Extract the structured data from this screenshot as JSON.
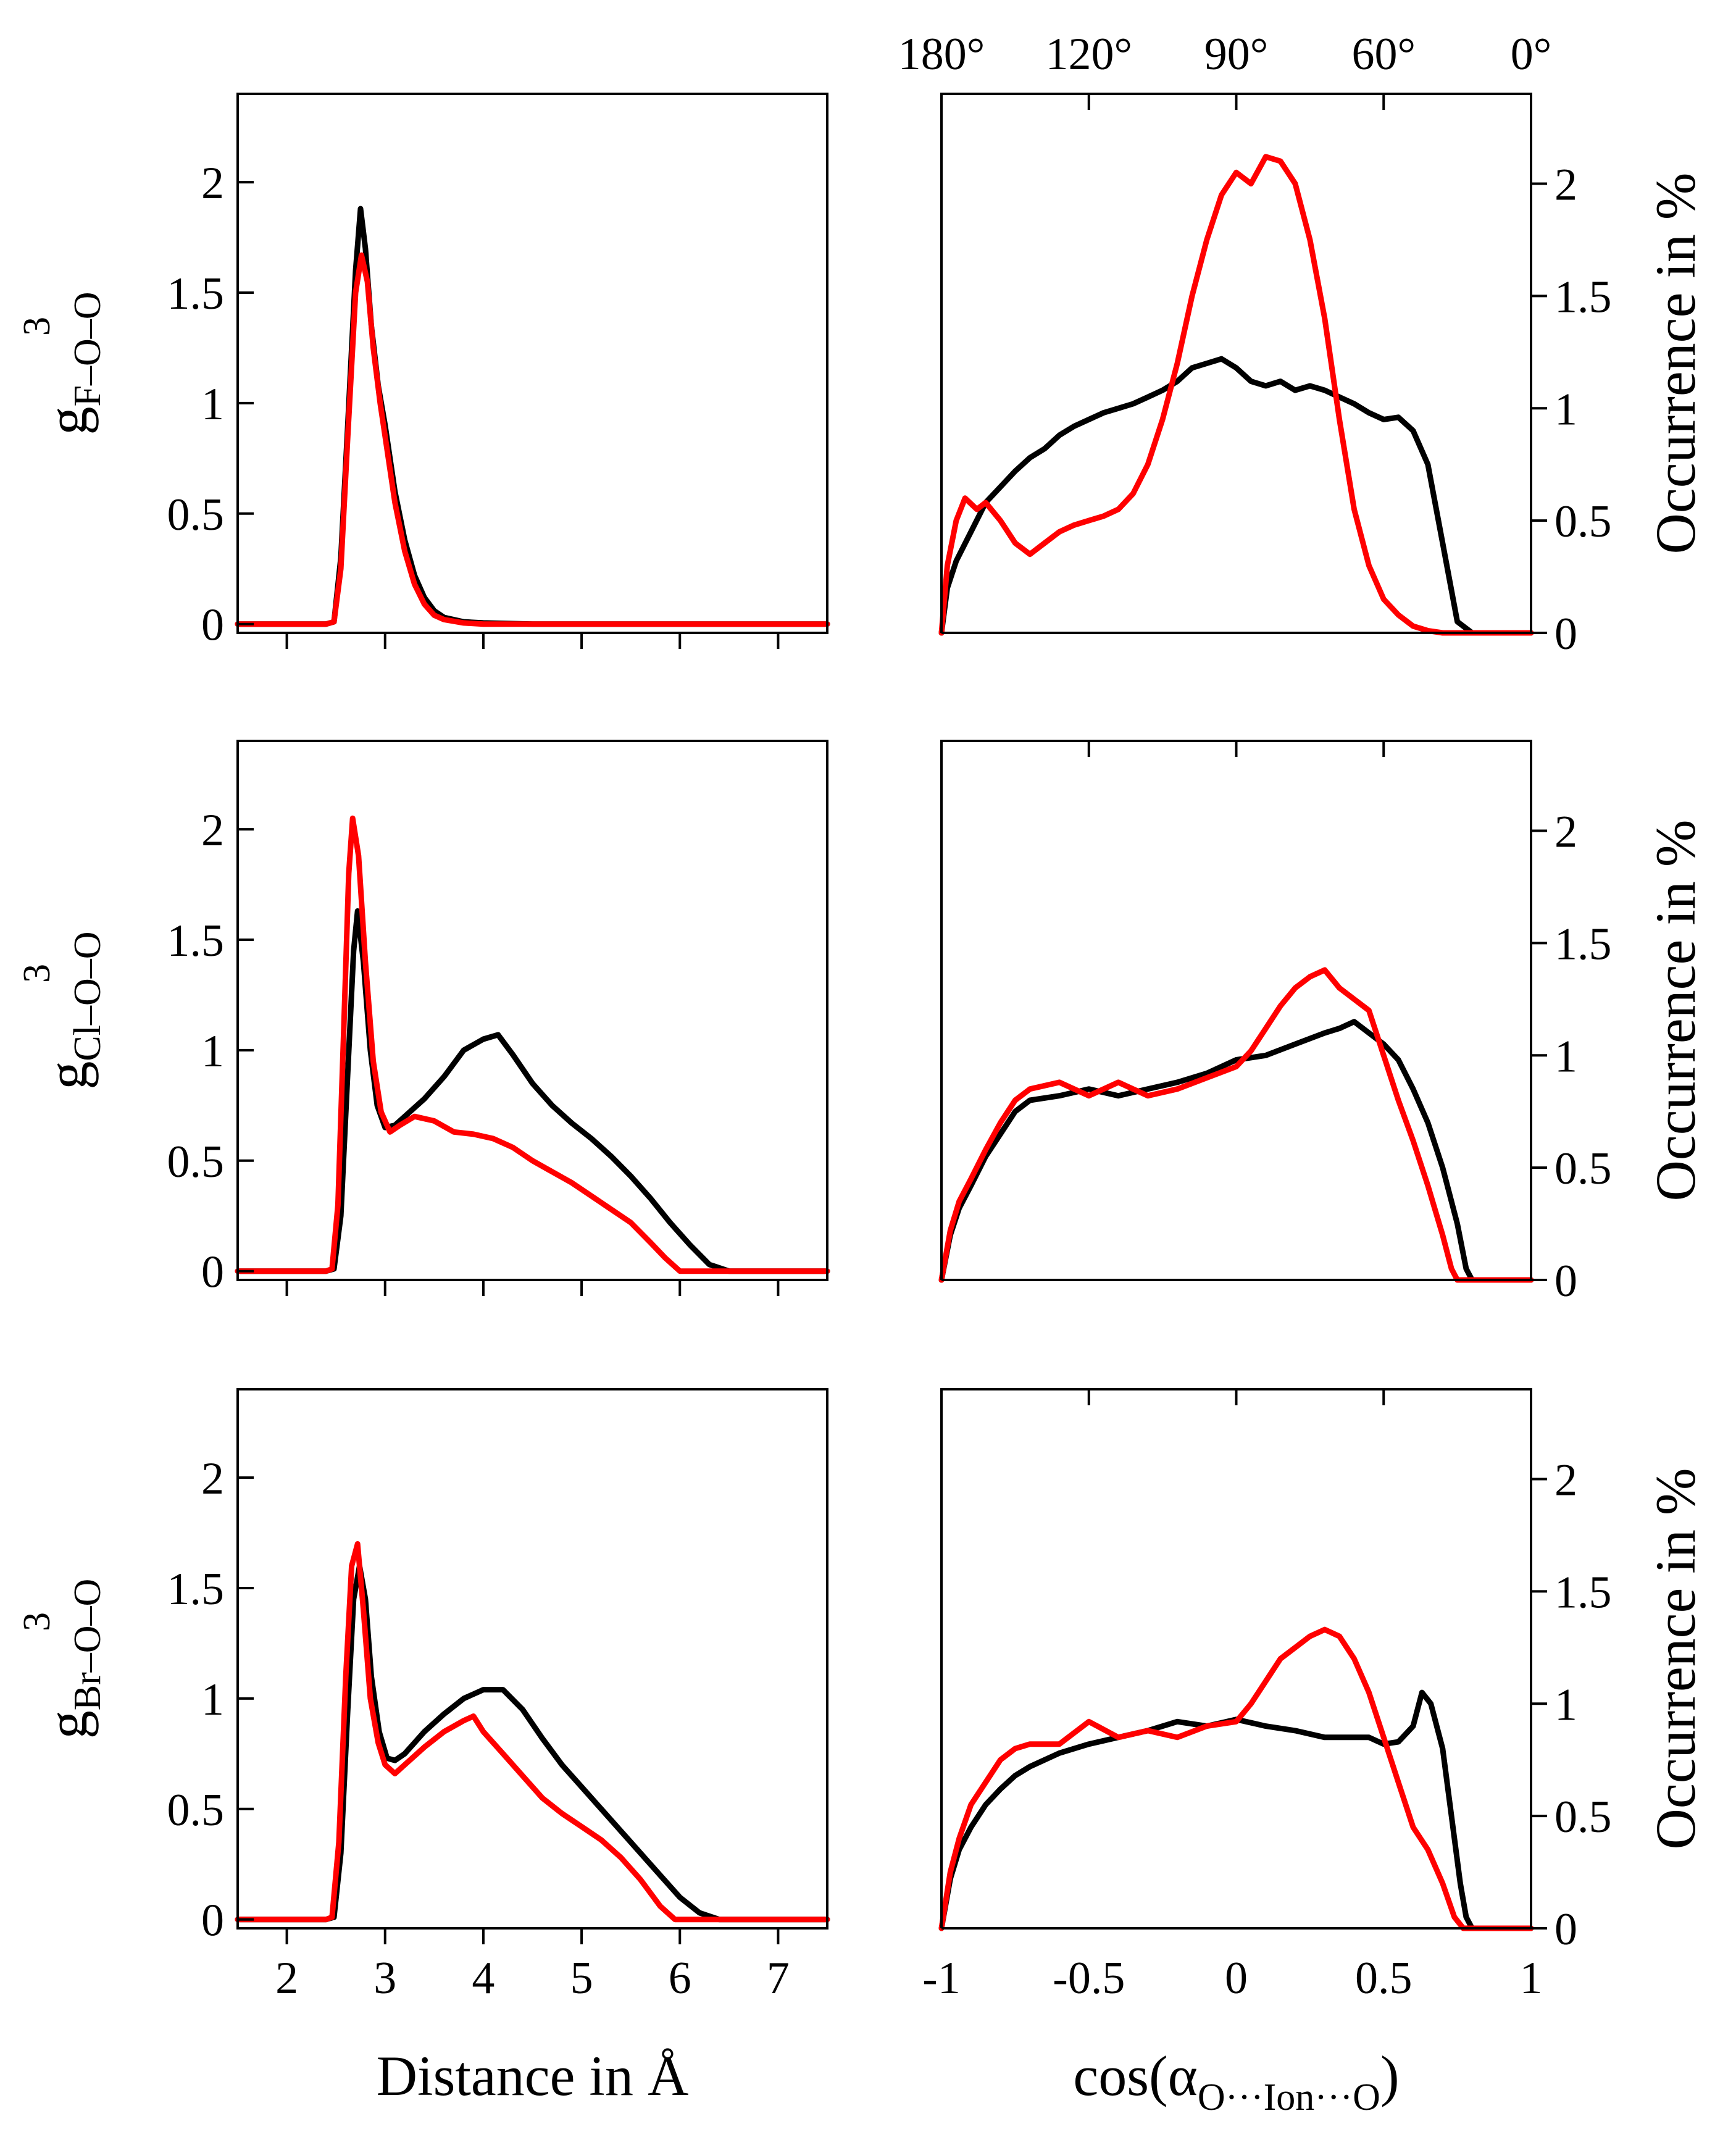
{
  "chart_data": [
    {
      "id": "rdf-F",
      "type": "line",
      "panel": "left-top",
      "ylabel_main": "g",
      "ylabel_superscript": "3",
      "ylabel_subscript": "F–O–O",
      "xlabel": "",
      "xlim": [
        1.5,
        7.5
      ],
      "ylim": [
        -0.04,
        2.4
      ],
      "xticks": [
        2,
        3,
        4,
        5,
        6,
        7
      ],
      "xtick_labels": [],
      "yticks": [
        0,
        0.5,
        1,
        1.5,
        2
      ],
      "ytick_labels": [
        "0",
        "0.5",
        "1",
        "1.5",
        "2"
      ],
      "series": [
        {
          "name": "black",
          "color": "#000000",
          "x": [
            1.5,
            2.4,
            2.48,
            2.55,
            2.62,
            2.7,
            2.75,
            2.8,
            2.86,
            2.93,
            3.0,
            3.1,
            3.2,
            3.3,
            3.4,
            3.5,
            3.6,
            3.8,
            4.0,
            4.5,
            7.5
          ],
          "y": [
            0,
            0,
            0.01,
            0.3,
            0.9,
            1.6,
            1.88,
            1.7,
            1.35,
            1.08,
            0.9,
            0.6,
            0.38,
            0.22,
            0.12,
            0.06,
            0.03,
            0.01,
            0.005,
            0,
            0
          ]
        },
        {
          "name": "red",
          "color": "#ff0000",
          "x": [
            1.5,
            2.4,
            2.48,
            2.55,
            2.62,
            2.7,
            2.76,
            2.82,
            2.88,
            2.95,
            3.0,
            3.1,
            3.2,
            3.3,
            3.4,
            3.5,
            3.6,
            3.8,
            4.0,
            4.5,
            7.5
          ],
          "y": [
            0,
            0,
            0.01,
            0.25,
            0.85,
            1.5,
            1.67,
            1.55,
            1.25,
            1.0,
            0.85,
            0.55,
            0.33,
            0.18,
            0.09,
            0.04,
            0.02,
            0.005,
            0,
            0,
            0
          ]
        }
      ]
    },
    {
      "id": "angle-F",
      "type": "line",
      "panel": "right-top",
      "ylabel": "Occurrence in %",
      "xlabel": "",
      "xlim": [
        -1,
        1
      ],
      "ylim": [
        0,
        2.4
      ],
      "xticks": [
        -1,
        -0.5,
        0,
        0.5,
        1
      ],
      "xtick_labels": [],
      "top_ticks": [
        -1,
        -0.5,
        0,
        0.5,
        1
      ],
      "top_tick_labels": [
        "180°",
        "120°",
        "90°",
        "60°",
        "0°"
      ],
      "yticks": [
        0,
        0.5,
        1,
        1.5,
        2
      ],
      "ytick_labels": [
        "0",
        "0.5",
        "1",
        "1.5",
        "2"
      ],
      "series": [
        {
          "name": "black",
          "color": "#000000",
          "x": [
            -1,
            -0.98,
            -0.95,
            -0.9,
            -0.85,
            -0.8,
            -0.75,
            -0.7,
            -0.65,
            -0.6,
            -0.55,
            -0.5,
            -0.45,
            -0.4,
            -0.35,
            -0.3,
            -0.25,
            -0.2,
            -0.15,
            -0.1,
            -0.05,
            0,
            0.05,
            0.1,
            0.15,
            0.2,
            0.25,
            0.3,
            0.35,
            0.4,
            0.45,
            0.5,
            0.55,
            0.6,
            0.65,
            0.7,
            0.75,
            0.8,
            1
          ],
          "y": [
            0,
            0.2,
            0.32,
            0.45,
            0.58,
            0.65,
            0.72,
            0.78,
            0.82,
            0.88,
            0.92,
            0.95,
            0.98,
            1.0,
            1.02,
            1.05,
            1.08,
            1.12,
            1.18,
            1.2,
            1.22,
            1.18,
            1.12,
            1.1,
            1.12,
            1.08,
            1.1,
            1.08,
            1.05,
            1.02,
            0.98,
            0.95,
            0.96,
            0.9,
            0.75,
            0.4,
            0.05,
            0,
            0
          ]
        },
        {
          "name": "red",
          "color": "#ff0000",
          "x": [
            -1,
            -0.98,
            -0.95,
            -0.92,
            -0.88,
            -0.85,
            -0.8,
            -0.75,
            -0.7,
            -0.65,
            -0.6,
            -0.55,
            -0.5,
            -0.45,
            -0.4,
            -0.35,
            -0.3,
            -0.25,
            -0.2,
            -0.15,
            -0.1,
            -0.05,
            0,
            0.05,
            0.1,
            0.15,
            0.2,
            0.25,
            0.3,
            0.35,
            0.4,
            0.45,
            0.5,
            0.55,
            0.6,
            0.65,
            0.7,
            0.75,
            1
          ],
          "y": [
            0,
            0.3,
            0.5,
            0.6,
            0.55,
            0.58,
            0.5,
            0.4,
            0.35,
            0.4,
            0.45,
            0.48,
            0.5,
            0.52,
            0.55,
            0.62,
            0.75,
            0.95,
            1.2,
            1.5,
            1.75,
            1.95,
            2.05,
            2.0,
            2.12,
            2.1,
            2.0,
            1.75,
            1.4,
            0.95,
            0.55,
            0.3,
            0.15,
            0.08,
            0.03,
            0.01,
            0,
            0,
            0
          ]
        }
      ]
    },
    {
      "id": "rdf-Cl",
      "type": "line",
      "panel": "left-middle",
      "ylabel_main": "g",
      "ylabel_superscript": "3",
      "ylabel_subscript": "Cl–O–O",
      "xlabel": "",
      "xlim": [
        1.5,
        7.5
      ],
      "ylim": [
        -0.04,
        2.4
      ],
      "xticks": [
        2,
        3,
        4,
        5,
        6,
        7
      ],
      "xtick_labels": [],
      "yticks": [
        0,
        0.5,
        1,
        1.5,
        2
      ],
      "ytick_labels": [
        "0",
        "0.5",
        "1",
        "1.5",
        "2"
      ],
      "series": [
        {
          "name": "black",
          "color": "#000000",
          "x": [
            1.5,
            2.4,
            2.48,
            2.55,
            2.62,
            2.68,
            2.72,
            2.78,
            2.85,
            2.92,
            3.0,
            3.1,
            3.2,
            3.4,
            3.6,
            3.8,
            4.0,
            4.15,
            4.3,
            4.5,
            4.7,
            4.9,
            5.1,
            5.3,
            5.5,
            5.7,
            5.9,
            6.1,
            6.3,
            6.5,
            7.5
          ],
          "y": [
            0,
            0,
            0.01,
            0.25,
            0.9,
            1.45,
            1.63,
            1.4,
            1.0,
            0.75,
            0.65,
            0.66,
            0.7,
            0.78,
            0.88,
            1.0,
            1.05,
            1.07,
            0.98,
            0.85,
            0.75,
            0.67,
            0.6,
            0.52,
            0.43,
            0.33,
            0.22,
            0.12,
            0.03,
            0,
            0
          ]
        },
        {
          "name": "red",
          "color": "#ff0000",
          "x": [
            1.5,
            2.4,
            2.46,
            2.52,
            2.58,
            2.63,
            2.67,
            2.73,
            2.8,
            2.88,
            2.96,
            3.05,
            3.15,
            3.3,
            3.5,
            3.7,
            3.9,
            4.1,
            4.3,
            4.5,
            4.7,
            4.9,
            5.1,
            5.3,
            5.5,
            5.7,
            5.85,
            6.0,
            7.5
          ],
          "y": [
            0,
            0,
            0.01,
            0.3,
            1.1,
            1.8,
            2.05,
            1.88,
            1.4,
            0.95,
            0.72,
            0.63,
            0.66,
            0.7,
            0.68,
            0.63,
            0.62,
            0.6,
            0.56,
            0.5,
            0.45,
            0.4,
            0.34,
            0.28,
            0.22,
            0.13,
            0.06,
            0,
            0
          ]
        }
      ]
    },
    {
      "id": "angle-Cl",
      "type": "line",
      "panel": "right-middle",
      "ylabel": "Occurrence in %",
      "xlabel": "",
      "xlim": [
        -1,
        1
      ],
      "ylim": [
        0,
        2.4
      ],
      "xticks": [
        -1,
        -0.5,
        0,
        0.5,
        1
      ],
      "xtick_labels": [],
      "top_ticks": [
        -1,
        -0.5,
        0,
        0.5,
        1
      ],
      "top_tick_labels": [],
      "yticks": [
        0,
        0.5,
        1,
        1.5,
        2
      ],
      "ytick_labels": [
        "0",
        "0.5",
        "1",
        "1.5",
        "2"
      ],
      "series": [
        {
          "name": "black",
          "color": "#000000",
          "x": [
            -1,
            -0.97,
            -0.94,
            -0.9,
            -0.85,
            -0.8,
            -0.75,
            -0.7,
            -0.6,
            -0.5,
            -0.4,
            -0.3,
            -0.2,
            -0.1,
            0,
            0.1,
            0.2,
            0.3,
            0.35,
            0.4,
            0.45,
            0.5,
            0.55,
            0.6,
            0.65,
            0.7,
            0.75,
            0.78,
            0.8,
            1
          ],
          "y": [
            0,
            0.2,
            0.32,
            0.42,
            0.55,
            0.65,
            0.75,
            0.8,
            0.82,
            0.85,
            0.82,
            0.85,
            0.88,
            0.92,
            0.98,
            1.0,
            1.05,
            1.1,
            1.12,
            1.15,
            1.1,
            1.05,
            0.98,
            0.85,
            0.7,
            0.5,
            0.25,
            0.05,
            0,
            0
          ]
        },
        {
          "name": "red",
          "color": "#ff0000",
          "x": [
            -1,
            -0.97,
            -0.94,
            -0.9,
            -0.85,
            -0.8,
            -0.75,
            -0.7,
            -0.6,
            -0.5,
            -0.4,
            -0.3,
            -0.2,
            -0.1,
            0,
            0.05,
            0.1,
            0.15,
            0.2,
            0.25,
            0.3,
            0.35,
            0.4,
            0.45,
            0.5,
            0.55,
            0.6,
            0.65,
            0.7,
            0.73,
            0.75,
            1
          ],
          "y": [
            0,
            0.22,
            0.35,
            0.45,
            0.58,
            0.7,
            0.8,
            0.85,
            0.88,
            0.82,
            0.88,
            0.82,
            0.85,
            0.9,
            0.95,
            1.02,
            1.12,
            1.22,
            1.3,
            1.35,
            1.38,
            1.3,
            1.25,
            1.2,
            1.0,
            0.8,
            0.62,
            0.42,
            0.2,
            0.05,
            0,
            0
          ]
        }
      ]
    },
    {
      "id": "rdf-Br",
      "type": "line",
      "panel": "left-bottom",
      "ylabel_main": "g",
      "ylabel_superscript": "3",
      "ylabel_subscript": "Br–O–O",
      "xlabel": "Distance in Å",
      "xlim": [
        1.5,
        7.5
      ],
      "ylim": [
        -0.04,
        2.4
      ],
      "xticks": [
        2,
        3,
        4,
        5,
        6,
        7
      ],
      "xtick_labels": [
        "2",
        "3",
        "4",
        "5",
        "6",
        "7"
      ],
      "yticks": [
        0,
        0.5,
        1,
        1.5,
        2
      ],
      "ytick_labels": [
        "0",
        "0.5",
        "1",
        "1.5",
        "2"
      ],
      "series": [
        {
          "name": "black",
          "color": "#000000",
          "x": [
            1.5,
            2.4,
            2.48,
            2.55,
            2.62,
            2.68,
            2.74,
            2.8,
            2.86,
            2.94,
            3.02,
            3.1,
            3.2,
            3.4,
            3.6,
            3.8,
            4.0,
            4.2,
            4.4,
            4.6,
            4.8,
            5.0,
            5.2,
            5.4,
            5.6,
            5.8,
            6.0,
            6.2,
            6.4,
            7.5
          ],
          "y": [
            0,
            0,
            0.01,
            0.3,
            0.95,
            1.45,
            1.6,
            1.45,
            1.1,
            0.85,
            0.73,
            0.72,
            0.75,
            0.85,
            0.93,
            1.0,
            1.04,
            1.04,
            0.95,
            0.82,
            0.7,
            0.6,
            0.5,
            0.4,
            0.3,
            0.2,
            0.1,
            0.03,
            0,
            0
          ]
        },
        {
          "name": "red",
          "color": "#ff0000",
          "x": [
            1.5,
            2.4,
            2.46,
            2.53,
            2.6,
            2.66,
            2.72,
            2.78,
            2.85,
            2.93,
            3.0,
            3.1,
            3.2,
            3.4,
            3.6,
            3.8,
            3.9,
            4.0,
            4.2,
            4.4,
            4.6,
            4.8,
            5.0,
            5.2,
            5.4,
            5.6,
            5.8,
            5.95,
            7.5
          ],
          "y": [
            0,
            0,
            0.01,
            0.35,
            1.1,
            1.6,
            1.7,
            1.4,
            1.0,
            0.8,
            0.7,
            0.66,
            0.7,
            0.78,
            0.85,
            0.9,
            0.92,
            0.85,
            0.75,
            0.65,
            0.55,
            0.48,
            0.42,
            0.36,
            0.28,
            0.18,
            0.06,
            0,
            0
          ]
        }
      ]
    },
    {
      "id": "angle-Br",
      "type": "line",
      "panel": "right-bottom",
      "ylabel": "Occurrence in %",
      "xlabel": "cos(α",
      "xlabel_subscript": "O···Ion···O",
      "xlabel_suffix": ")",
      "xlim": [
        -1,
        1
      ],
      "ylim": [
        0,
        2.4
      ],
      "xticks": [
        -1,
        -0.5,
        0,
        0.5,
        1
      ],
      "xtick_labels": [
        "-1",
        "-0.5",
        "0",
        "0.5",
        "1"
      ],
      "top_ticks": [
        -1,
        -0.5,
        0,
        0.5,
        1
      ],
      "top_tick_labels": [],
      "yticks": [
        0,
        0.5,
        1,
        1.5,
        2
      ],
      "ytick_labels": [
        "0",
        "0.5",
        "1",
        "1.5",
        "2"
      ],
      "series": [
        {
          "name": "black",
          "color": "#000000",
          "x": [
            -1,
            -0.97,
            -0.94,
            -0.9,
            -0.85,
            -0.8,
            -0.75,
            -0.7,
            -0.6,
            -0.5,
            -0.4,
            -0.3,
            -0.2,
            -0.1,
            0,
            0.1,
            0.2,
            0.3,
            0.4,
            0.45,
            0.5,
            0.55,
            0.6,
            0.63,
            0.66,
            0.7,
            0.73,
            0.76,
            0.78,
            0.8,
            1
          ],
          "y": [
            0,
            0.22,
            0.35,
            0.45,
            0.55,
            0.62,
            0.68,
            0.72,
            0.78,
            0.82,
            0.85,
            0.88,
            0.92,
            0.9,
            0.93,
            0.9,
            0.88,
            0.85,
            0.85,
            0.85,
            0.82,
            0.83,
            0.9,
            1.05,
            1.0,
            0.8,
            0.5,
            0.2,
            0.05,
            0,
            0
          ]
        },
        {
          "name": "red",
          "color": "#ff0000",
          "x": [
            -1,
            -0.97,
            -0.94,
            -0.9,
            -0.85,
            -0.8,
            -0.75,
            -0.7,
            -0.6,
            -0.5,
            -0.4,
            -0.3,
            -0.2,
            -0.1,
            0,
            0.05,
            0.1,
            0.15,
            0.2,
            0.25,
            0.3,
            0.35,
            0.4,
            0.45,
            0.5,
            0.55,
            0.6,
            0.65,
            0.7,
            0.74,
            0.77,
            1
          ],
          "y": [
            0,
            0.25,
            0.4,
            0.55,
            0.65,
            0.75,
            0.8,
            0.82,
            0.82,
            0.92,
            0.85,
            0.88,
            0.85,
            0.9,
            0.92,
            1.0,
            1.1,
            1.2,
            1.25,
            1.3,
            1.33,
            1.3,
            1.2,
            1.05,
            0.85,
            0.65,
            0.45,
            0.35,
            0.2,
            0.05,
            0,
            0
          ]
        }
      ]
    }
  ]
}
